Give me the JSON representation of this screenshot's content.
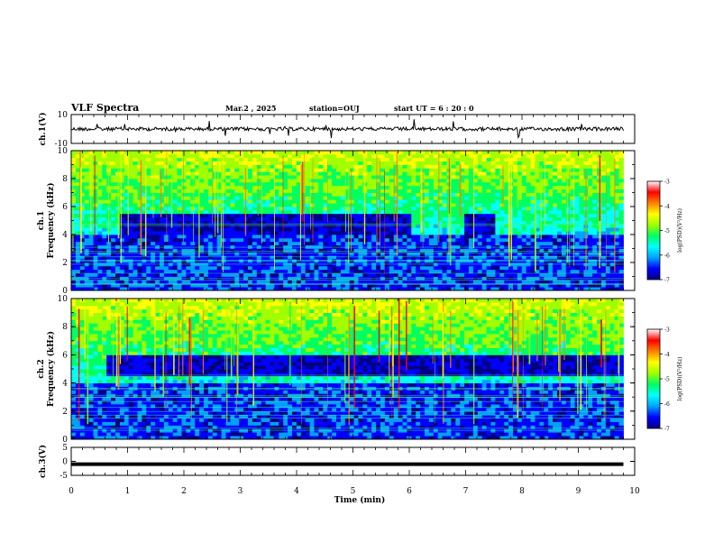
{
  "header": {
    "title": "VLF Spectra",
    "date": "Mar.2 , 2025",
    "station": "station=OUJ",
    "start_ut": "start UT = 6 : 20 : 0"
  },
  "chart_data": {
    "type": "heatmap",
    "x": {
      "label": "Time (min)",
      "range": [
        0,
        10
      ],
      "ticks": [
        "0",
        "1",
        "2",
        "3",
        "4",
        "5",
        "6",
        "7",
        "8",
        "9",
        "10"
      ]
    },
    "panels": [
      {
        "kind": "waveform",
        "label": "ch.1(V)",
        "ylim": [
          -10,
          10
        ],
        "ticks": [
          "10",
          "-10"
        ]
      },
      {
        "kind": "spectrogram",
        "label_line1": "ch.1",
        "label_line2": "Frequency (kHz)",
        "ylim": [
          0,
          10
        ],
        "ticks": [
          "0",
          "2",
          "4",
          "6",
          "8",
          "10"
        ],
        "quiet_band_khz": [
          4,
          5.5
        ],
        "quiet_band_times_min": [
          [
            0.9,
            6.0
          ],
          [
            7.0,
            7.5
          ]
        ]
      },
      {
        "kind": "spectrogram",
        "label_line1": "ch.2",
        "label_line2": "Frequency (kHz)",
        "ylim": [
          0,
          10
        ],
        "ticks": [
          "0",
          "2",
          "4",
          "6",
          "8",
          "10"
        ],
        "quiet_band_khz": [
          4.5,
          6
        ],
        "quiet_band_times_min": [
          [
            0.6,
            9.8
          ]
        ]
      },
      {
        "kind": "waveform",
        "label": "ch.3(V)",
        "ylim": [
          -5,
          5
        ],
        "ticks": [
          "5",
          "0",
          "-5"
        ],
        "constant_level_v": -1
      }
    ],
    "colorbar": {
      "label": "log(PSD)(V²/Hz)",
      "range": [
        -7,
        -3
      ],
      "ticks": [
        "-3",
        "-4",
        "-5",
        "-6",
        "-7"
      ],
      "colors": [
        "#000080",
        "#0000ff",
        "#00a0ff",
        "#00ffff",
        "#00ff60",
        "#a0ff00",
        "#ffff00",
        "#ff8000",
        "#ff0000",
        "#ffffff"
      ]
    },
    "data_end_min": 9.8
  }
}
